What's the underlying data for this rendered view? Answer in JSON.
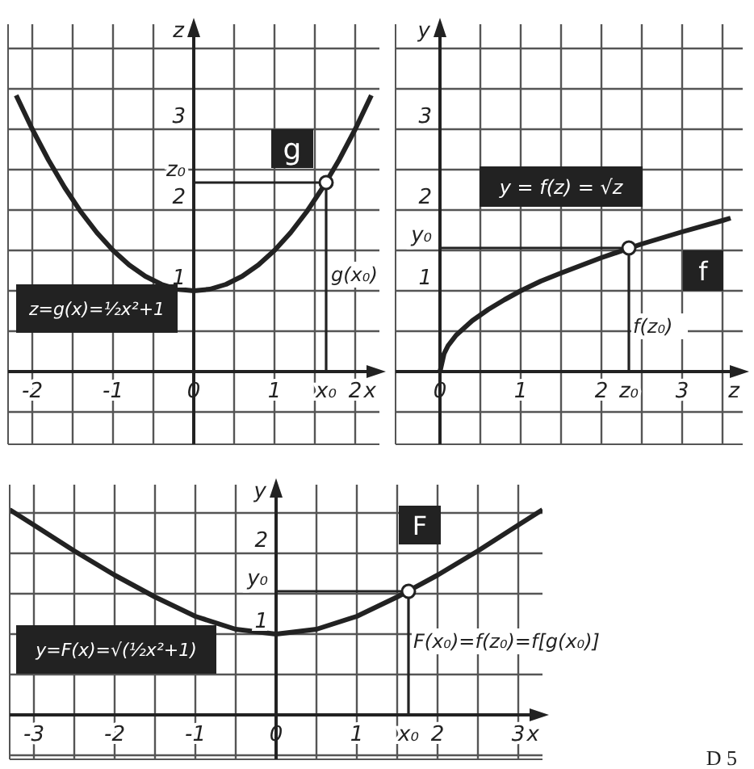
{
  "chart_data": [
    {
      "type": "line",
      "xlabel": "x",
      "ylabel": "z",
      "grid": true,
      "xlim": [
        -2.3,
        2.3
      ],
      "ylim": [
        -0.9,
        4.3
      ],
      "xticks": [
        -2,
        {
          "value": -1.5,
          "label": null
        },
        -1,
        {
          "value": -0.5,
          "label": null
        },
        0,
        {
          "value": 0.5,
          "label": null
        },
        1,
        {
          "value": 1.5,
          "label": null
        },
        {
          "value": 1.64,
          "label": "x₀"
        },
        2
      ],
      "yticks": [
        {
          "value": -0.5,
          "label": null
        },
        {
          "value": 0,
          "label": null
        },
        {
          "value": 0.5,
          "label": null
        },
        1,
        {
          "value": 1.5,
          "label": null
        },
        2,
        {
          "value": 2.34,
          "label": "z₀"
        },
        {
          "value": 2.5,
          "label": null
        },
        3,
        {
          "value": 3.5,
          "label": null
        },
        {
          "value": 4,
          "label": null
        }
      ],
      "series": [
        {
          "type": "line",
          "color": "#222222",
          "x": [
            -2.2,
            -2,
            -1.8,
            -1.6,
            -1.4,
            -1.2,
            -1,
            -0.8,
            -0.6,
            -0.4,
            -0.2,
            0,
            0.2,
            0.4,
            0.6,
            0.8,
            1,
            1.2,
            1.4,
            1.6,
            1.8,
            2,
            2.2
          ],
          "values": [
            3.42,
            3,
            2.62,
            2.28,
            1.98,
            1.72,
            1.5,
            1.32,
            1.18,
            1.08,
            1.02,
            1,
            1.02,
            1.08,
            1.18,
            1.32,
            1.5,
            1.72,
            1.98,
            2.28,
            2.62,
            3,
            3.42
          ]
        },
        {
          "type": "line",
          "color": "#222222",
          "x": [
            0,
            1.64,
            1.64
          ],
          "values": [
            2.34,
            2.34,
            0
          ]
        },
        {
          "type": "scatter",
          "color": "#ffffff",
          "x": [
            1.64
          ],
          "values": [
            2.34
          ]
        }
      ],
      "annotations": [
        "g",
        "z=g(x)=½x²+1",
        "g(x₀)"
      ]
    },
    {
      "type": "line",
      "xlabel": "z",
      "ylabel": "y",
      "grid": true,
      "xlim": [
        -0.55,
        3.75
      ],
      "ylim": [
        -0.9,
        4.3
      ],
      "xticks": [
        0,
        {
          "value": 0.5,
          "label": null
        },
        1,
        {
          "value": 1.5,
          "label": null
        },
        2,
        {
          "value": 2.34,
          "label": "z₀"
        },
        {
          "value": 2.5,
          "label": null
        },
        3,
        {
          "value": 3.5,
          "label": null
        }
      ],
      "yticks": [
        {
          "value": -0.5,
          "label": null
        },
        {
          "value": 0,
          "label": null
        },
        {
          "value": 0.5,
          "label": null
        },
        1,
        {
          "value": 1.5,
          "label": null
        },
        {
          "value": 1.53,
          "label": "y₀"
        },
        2,
        {
          "value": 2.5,
          "label": null
        },
        3,
        {
          "value": 3.5,
          "label": null
        },
        {
          "value": 4,
          "label": null
        }
      ],
      "series": [
        {
          "type": "line",
          "color": "#222222",
          "x": [
            0,
            0.05,
            0.1,
            0.2,
            0.4,
            0.6,
            0.8,
            1,
            1.25,
            1.5,
            2,
            2.5,
            3,
            3.5,
            3.6
          ],
          "values": [
            0,
            0.22,
            0.32,
            0.45,
            0.63,
            0.77,
            0.89,
            1,
            1.12,
            1.22,
            1.41,
            1.58,
            1.73,
            1.87,
            1.9
          ]
        },
        {
          "type": "line",
          "color": "#222222",
          "x": [
            0,
            2.34,
            2.34
          ],
          "values": [
            1.53,
            1.53,
            0
          ]
        },
        {
          "type": "scatter",
          "color": "#ffffff",
          "x": [
            2.34
          ],
          "values": [
            1.53
          ]
        }
      ],
      "annotations": [
        "y = f(z) = √z",
        "f",
        "f(z₀)"
      ]
    },
    {
      "type": "line",
      "xlabel": "x",
      "ylabel": "y",
      "grid": true,
      "xlim": [
        -3.3,
        3.3
      ],
      "ylim": [
        -0.55,
        2.85
      ],
      "xticks": [
        -3,
        {
          "value": -2.5,
          "label": null
        },
        -2,
        {
          "value": -1.5,
          "label": null
        },
        -1,
        {
          "value": -0.5,
          "label": null
        },
        0,
        {
          "value": 0.5,
          "label": null
        },
        1,
        {
          "value": 1.5,
          "label": null
        },
        {
          "value": 1.64,
          "label": "x₀"
        },
        2,
        {
          "value": 2.5,
          "label": null
        },
        3
      ],
      "yticks": [
        {
          "value": -0.5,
          "label": null
        },
        {
          "value": 0,
          "label": null
        },
        {
          "value": 0.5,
          "label": null
        },
        1,
        {
          "value": 1.5,
          "label": null
        },
        {
          "value": 1.53,
          "label": "y₀"
        },
        2,
        {
          "value": 2.5,
          "label": null
        }
      ],
      "series": [
        {
          "type": "line",
          "color": "#222222",
          "x": [
            -3.3,
            -3,
            -2.5,
            -2,
            -1.5,
            -1,
            -0.5,
            0,
            0.5,
            1,
            1.5,
            2,
            2.5,
            3,
            3.3
          ],
          "values": [
            2.54,
            2.35,
            2.03,
            1.73,
            1.46,
            1.22,
            1.06,
            1,
            1.06,
            1.22,
            1.46,
            1.73,
            2.03,
            2.35,
            2.54
          ]
        },
        {
          "type": "line",
          "color": "#222222",
          "x": [
            0,
            1.64,
            1.64
          ],
          "values": [
            1.53,
            1.53,
            0
          ]
        },
        {
          "type": "scatter",
          "color": "#ffffff",
          "x": [
            1.64
          ],
          "values": [
            1.53
          ]
        }
      ],
      "annotations": [
        "F",
        "y=F(x)=√(½x²+1)",
        "F(x₀)=f(z₀)=f[g(x₀)]",
        "D 5"
      ]
    }
  ]
}
